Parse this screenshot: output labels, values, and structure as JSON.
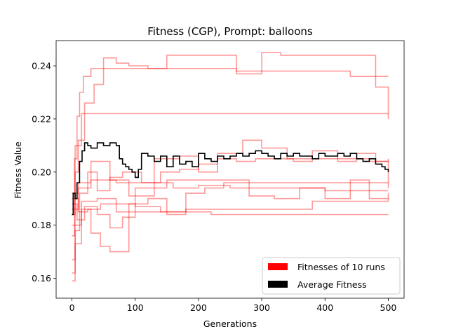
{
  "chart_data": {
    "type": "line",
    "title": "Fitness (CGP), Prompt: balloons",
    "xlabel": "Generations",
    "ylabel": "Fitness Value",
    "xlim": [
      -25,
      525
    ],
    "ylim": [
      0.1525,
      0.2495
    ],
    "xticks": [
      0,
      100,
      200,
      300,
      400,
      500
    ],
    "yticks": [
      0.16,
      0.18,
      0.2,
      0.22,
      0.24
    ],
    "ytick_labels": [
      "0.16",
      "0.18",
      "0.20",
      "0.22",
      "0.24"
    ],
    "grid": false,
    "legend_position": "lower-right",
    "colors": {
      "runs": "#ff0000",
      "average": "#000000"
    },
    "series": [
      {
        "name": "Fitnesses of 10 runs",
        "color": "#ff0000",
        "alpha": 0.4,
        "runs": [
          {
            "x": [
              0,
              4,
              8,
              12,
              18,
              30,
              60,
              75,
              110,
              160,
              220,
              260,
              300,
              340,
              400,
              440,
              480,
              500
            ],
            "y": [
              0.176,
              0.205,
              0.221,
              0.23,
              0.236,
              0.239,
              0.239,
              0.239,
              0.239,
              0.239,
              0.239,
              0.237,
              0.238,
              0.238,
              0.238,
              0.236,
              0.236,
              0.236
            ]
          },
          {
            "x": [
              0,
              5,
              10,
              20,
              35,
              50,
              70,
              90,
              120,
              150,
              180,
              220,
              260,
              300,
              330,
              360,
              400,
              440,
              480,
              500
            ],
            "y": [
              0.162,
              0.2,
              0.212,
              0.226,
              0.233,
              0.243,
              0.241,
              0.24,
              0.239,
              0.244,
              0.244,
              0.244,
              0.238,
              0.245,
              0.244,
              0.244,
              0.244,
              0.244,
              0.232,
              0.22
            ]
          },
          {
            "x": [
              0,
              5,
              15,
              30,
              50,
              80,
              120,
              160,
              200,
              260,
              320,
              380,
              420,
              460,
              500
            ],
            "y": [
              0.184,
              0.21,
              0.222,
              0.222,
              0.222,
              0.222,
              0.222,
              0.222,
              0.222,
              0.222,
              0.222,
              0.222,
              0.222,
              0.222,
              0.222
            ]
          },
          {
            "x": [
              0,
              10,
              30,
              60,
              90,
              130,
              170,
              200,
              230,
              270,
              300,
              340,
              380,
              420,
              450,
              480,
              500
            ],
            "y": [
              0.186,
              0.196,
              0.204,
              0.197,
              0.191,
              0.205,
              0.206,
              0.2,
              0.207,
              0.212,
              0.209,
              0.205,
              0.208,
              0.204,
              0.207,
              0.204,
              0.194
            ]
          },
          {
            "x": [
              0,
              15,
              40,
              70,
              100,
              150,
              200,
              240,
              280,
              320,
              360,
              400,
              440,
              480,
              500
            ],
            "y": [
              0.18,
              0.189,
              0.19,
              0.185,
              0.194,
              0.197,
              0.197,
              0.197,
              0.196,
              0.196,
              0.196,
              0.196,
              0.196,
              0.196,
              0.196
            ]
          },
          {
            "x": [
              0,
              10,
              25,
              45,
              70,
              100,
              140,
              180,
              220,
              260,
              300,
              340,
              380,
              420,
              460,
              500
            ],
            "y": [
              0.19,
              0.185,
              0.186,
              0.188,
              0.188,
              0.187,
              0.185,
              0.185,
              0.184,
              0.184,
              0.184,
              0.184,
              0.184,
              0.184,
              0.184,
              0.184
            ]
          },
          {
            "x": [
              0,
              10,
              30,
              50,
              70,
              90,
              120,
              160,
              200,
              250,
              300,
              350,
              400,
              450,
              500
            ],
            "y": [
              0.192,
              0.194,
              0.197,
              0.197,
              0.196,
              0.196,
              0.196,
              0.194,
              0.195,
              0.194,
              0.194,
              0.194,
              0.193,
              0.193,
              0.193
            ]
          },
          {
            "x": [
              0,
              8,
              20,
              40,
              60,
              80,
              100,
              140,
              180,
              230,
              280,
              330,
              380,
              430,
              480,
              500
            ],
            "y": [
              0.188,
              0.182,
              0.187,
              0.184,
              0.179,
              0.183,
              0.185,
              0.185,
              0.186,
              0.186,
              0.186,
              0.186,
              0.189,
              0.189,
              0.189,
              0.19
            ]
          },
          {
            "x": [
              0,
              5,
              15,
              30,
              45,
              60,
              90,
              120,
              150,
              180,
              210,
              240,
              280,
              320,
              360,
              400,
              440,
              470,
              500
            ],
            "y": [
              0.159,
              0.173,
              0.186,
              0.177,
              0.172,
              0.17,
              0.188,
              0.19,
              0.184,
              0.192,
              0.194,
              0.196,
              0.191,
              0.19,
              0.194,
              0.19,
              0.197,
              0.19,
              0.192
            ]
          },
          {
            "x": [
              0,
              5,
              12,
              25,
              40,
              60,
              80,
              110,
              140,
              170,
              200,
              230,
              260,
              290,
              320,
              350,
              380,
              410,
              440,
              470,
              500
            ],
            "y": [
              0.167,
              0.178,
              0.192,
              0.2,
              0.193,
              0.198,
              0.2,
              0.196,
              0.2,
              0.201,
              0.203,
              0.205,
              0.204,
              0.205,
              0.205,
              0.204,
              0.205,
              0.205,
              0.205,
              0.204,
              0.205
            ]
          }
        ]
      },
      {
        "name": "Average Fitness",
        "color": "#000000",
        "x": [
          0,
          2,
          5,
          8,
          12,
          16,
          20,
          25,
          30,
          40,
          50,
          60,
          70,
          75,
          80,
          85,
          90,
          95,
          100,
          105,
          110,
          120,
          130,
          140,
          150,
          160,
          170,
          180,
          190,
          200,
          210,
          220,
          230,
          240,
          250,
          260,
          270,
          280,
          290,
          300,
          310,
          320,
          330,
          340,
          350,
          360,
          370,
          380,
          390,
          400,
          410,
          420,
          430,
          440,
          450,
          460,
          470,
          480,
          490,
          495,
          500
        ],
        "y": [
          0.184,
          0.192,
          0.19,
          0.196,
          0.204,
          0.208,
          0.211,
          0.21,
          0.209,
          0.211,
          0.21,
          0.211,
          0.21,
          0.205,
          0.203,
          0.202,
          0.201,
          0.2,
          0.198,
          0.201,
          0.207,
          0.206,
          0.204,
          0.206,
          0.202,
          0.206,
          0.203,
          0.204,
          0.202,
          0.207,
          0.205,
          0.204,
          0.206,
          0.205,
          0.206,
          0.207,
          0.206,
          0.207,
          0.208,
          0.207,
          0.206,
          0.205,
          0.207,
          0.206,
          0.207,
          0.206,
          0.206,
          0.205,
          0.207,
          0.206,
          0.206,
          0.207,
          0.206,
          0.207,
          0.205,
          0.204,
          0.205,
          0.203,
          0.202,
          0.201,
          0.2
        ]
      }
    ],
    "legend": [
      "Fitnesses of 10 runs",
      "Average Fitness"
    ]
  }
}
